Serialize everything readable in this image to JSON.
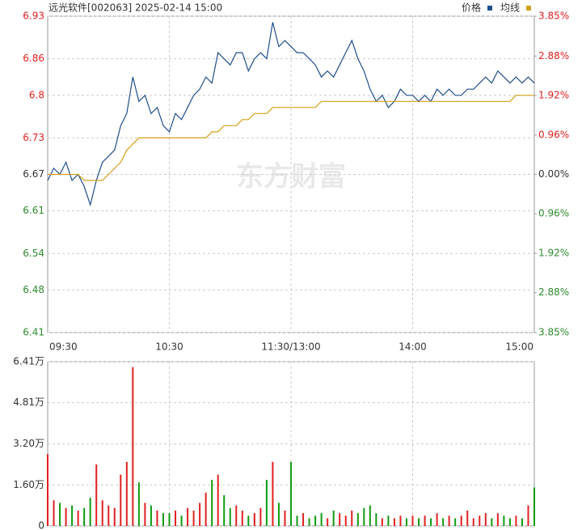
{
  "chart_data": [
    {
      "type": "line",
      "title": "远光软件[002063] 2025-02-14 15:00",
      "watermark": "东方财富",
      "x": [
        0,
        3,
        6,
        9,
        12,
        15,
        18,
        21,
        24,
        27,
        30,
        33,
        36,
        39,
        42,
        45,
        48,
        51,
        54,
        57,
        60,
        63,
        66,
        69,
        72,
        75,
        78,
        81,
        84,
        87,
        90,
        93,
        96,
        99,
        102,
        105,
        108,
        111,
        114,
        117,
        120,
        123,
        126,
        129,
        132,
        135,
        138,
        141,
        144,
        147,
        150,
        153,
        156,
        159,
        162,
        165,
        168,
        171,
        174,
        177,
        180,
        183,
        186,
        189,
        192,
        195,
        198,
        201,
        204,
        207,
        210,
        213,
        216,
        219,
        222,
        225,
        228,
        231,
        234,
        237,
        240
      ],
      "series": [
        {
          "name": "价格",
          "color": "#1f4e8c",
          "values": [
            6.66,
            6.68,
            6.67,
            6.69,
            6.66,
            6.67,
            6.65,
            6.62,
            6.66,
            6.69,
            6.7,
            6.71,
            6.75,
            6.77,
            6.83,
            6.79,
            6.8,
            6.77,
            6.78,
            6.75,
            6.74,
            6.77,
            6.76,
            6.78,
            6.8,
            6.81,
            6.83,
            6.82,
            6.87,
            6.86,
            6.85,
            6.87,
            6.87,
            6.84,
            6.86,
            6.87,
            6.86,
            6.92,
            6.88,
            6.89,
            6.88,
            6.87,
            6.87,
            6.86,
            6.85,
            6.83,
            6.84,
            6.83,
            6.85,
            6.87,
            6.89,
            6.86,
            6.84,
            6.81,
            6.79,
            6.8,
            6.78,
            6.79,
            6.81,
            6.8,
            6.8,
            6.79,
            6.8,
            6.79,
            6.81,
            6.8,
            6.81,
            6.8,
            6.8,
            6.81,
            6.81,
            6.82,
            6.83,
            6.82,
            6.84,
            6.83,
            6.82,
            6.83,
            6.82,
            6.83,
            6.82
          ]
        },
        {
          "name": "均线",
          "color": "#d4a017",
          "values": [
            6.67,
            6.67,
            6.67,
            6.67,
            6.67,
            6.67,
            6.66,
            6.66,
            6.66,
            6.66,
            6.67,
            6.68,
            6.69,
            6.71,
            6.72,
            6.73,
            6.73,
            6.73,
            6.73,
            6.73,
            6.73,
            6.73,
            6.73,
            6.73,
            6.73,
            6.73,
            6.73,
            6.74,
            6.74,
            6.75,
            6.75,
            6.75,
            6.76,
            6.76,
            6.77,
            6.77,
            6.77,
            6.78,
            6.78,
            6.78,
            6.78,
            6.78,
            6.78,
            6.78,
            6.78,
            6.79,
            6.79,
            6.79,
            6.79,
            6.79,
            6.79,
            6.79,
            6.79,
            6.79,
            6.79,
            6.79,
            6.79,
            6.79,
            6.79,
            6.79,
            6.79,
            6.79,
            6.79,
            6.79,
            6.79,
            6.79,
            6.79,
            6.79,
            6.79,
            6.79,
            6.79,
            6.79,
            6.79,
            6.79,
            6.79,
            6.79,
            6.79,
            6.8,
            6.8,
            6.8,
            6.8
          ]
        }
      ],
      "xlim": [
        0,
        240
      ],
      "xticks": [
        {
          "value": 0,
          "label": "09:30"
        },
        {
          "value": 60,
          "label": "10:30"
        },
        {
          "value": 120,
          "label": "11:30/13:00"
        },
        {
          "value": 180,
          "label": "14:00"
        },
        {
          "value": 240,
          "label": "15:00"
        }
      ],
      "ylim": [
        6.41,
        6.93
      ],
      "yticks": [
        6.93,
        6.86,
        6.8,
        6.73,
        6.67,
        6.61,
        6.54,
        6.48,
        6.41
      ],
      "y2lim": [
        -3.85,
        3.85
      ],
      "y2ticks": [
        {
          "value": 3.85,
          "label": "3.85%"
        },
        {
          "value": 2.88,
          "label": "2.88%"
        },
        {
          "value": 1.92,
          "label": "1.92%"
        },
        {
          "value": 0.96,
          "label": "0.96%"
        },
        {
          "value": 0,
          "label": "0.00%"
        },
        {
          "value": -0.96,
          "label": "0.96%"
        },
        {
          "value": -1.92,
          "label": "1.92%"
        },
        {
          "value": -2.88,
          "label": "2.88%"
        },
        {
          "value": -3.85,
          "label": "3.85%"
        }
      ],
      "grid": true
    },
    {
      "type": "bar",
      "x": [
        0,
        3,
        6,
        9,
        12,
        15,
        18,
        21,
        24,
        27,
        30,
        33,
        36,
        39,
        42,
        45,
        48,
        51,
        54,
        57,
        60,
        63,
        66,
        69,
        72,
        75,
        78,
        81,
        84,
        87,
        90,
        93,
        96,
        99,
        102,
        105,
        108,
        111,
        114,
        117,
        120,
        123,
        126,
        129,
        132,
        135,
        138,
        141,
        144,
        147,
        150,
        153,
        156,
        159,
        162,
        165,
        168,
        171,
        174,
        177,
        180,
        183,
        186,
        189,
        192,
        195,
        198,
        201,
        204,
        207,
        210,
        213,
        216,
        219,
        222,
        225,
        228,
        231,
        234,
        237,
        240
      ],
      "values": [
        2.8,
        1.0,
        0.9,
        0.7,
        0.8,
        0.6,
        0.7,
        1.1,
        2.4,
        1.0,
        0.8,
        0.7,
        2.0,
        2.5,
        6.2,
        1.7,
        0.9,
        0.8,
        0.6,
        0.5,
        0.5,
        0.6,
        0.4,
        0.7,
        0.6,
        0.9,
        1.3,
        1.8,
        2.0,
        1.2,
        0.7,
        0.8,
        0.6,
        0.4,
        0.5,
        0.7,
        1.8,
        2.5,
        0.9,
        0.6,
        2.5,
        0.4,
        0.5,
        0.3,
        0.4,
        0.5,
        0.3,
        0.6,
        0.5,
        0.4,
        0.6,
        0.5,
        0.7,
        0.8,
        0.5,
        0.3,
        0.4,
        0.3,
        0.4,
        0.3,
        0.4,
        0.3,
        0.4,
        0.3,
        0.5,
        0.3,
        0.4,
        0.3,
        0.4,
        0.6,
        0.3,
        0.4,
        0.5,
        0.3,
        0.5,
        0.4,
        0.3,
        0.4,
        0.3,
        0.8,
        1.5
      ],
      "up_color": "#e02020",
      "down_color": "#129a12",
      "xlim": [
        0,
        240
      ],
      "ylim": [
        0,
        6.41
      ],
      "yticks": [
        {
          "value": 6.41,
          "label": "6.41万"
        },
        {
          "value": 4.81,
          "label": "4.81万"
        },
        {
          "value": 3.2,
          "label": "3.20万"
        },
        {
          "value": 1.6,
          "label": "1.60万"
        },
        0
      ],
      "grid": true
    }
  ]
}
